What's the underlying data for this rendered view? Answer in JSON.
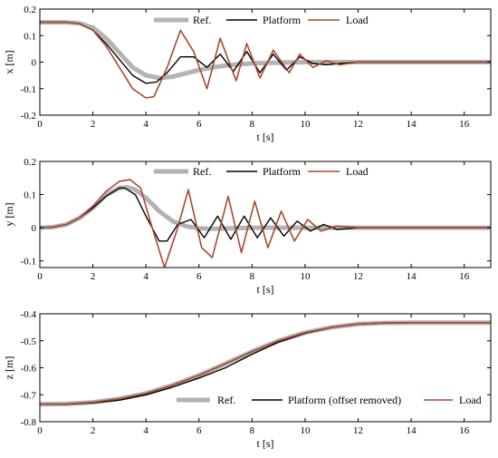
{
  "chart_data": [
    {
      "type": "line",
      "xlabel": "t [s]",
      "ylabel": "x [m]",
      "xlim": [
        0,
        17
      ],
      "ylim": [
        -0.2,
        0.2
      ],
      "xticks": [
        "0",
        "2",
        "4",
        "6",
        "8",
        "10",
        "12",
        "14",
        "16"
      ],
      "yticks": [
        "-0.2",
        "-0.1",
        "0",
        "0.1",
        "0.2"
      ],
      "grid": false,
      "legend_position": "top",
      "series": [
        {
          "name": "Ref.",
          "color": "#b3b3b3",
          "x": [
            0,
            1,
            1.5,
            2,
            2.5,
            3,
            3.5,
            4,
            4.5,
            5,
            5.5,
            6,
            6.5,
            7,
            7.5,
            8,
            8.5,
            9,
            9.5,
            10,
            10.5,
            11,
            11.5,
            12,
            17
          ],
          "y": [
            0.15,
            0.15,
            0.146,
            0.13,
            0.09,
            0.035,
            -0.02,
            -0.05,
            -0.06,
            -0.055,
            -0.042,
            -0.03,
            -0.02,
            -0.013,
            -0.008,
            -0.005,
            -0.003,
            -0.002,
            -0.001,
            -0.0005,
            0,
            0,
            0,
            0,
            0
          ]
        },
        {
          "name": "Platform",
          "color": "#000000",
          "x": [
            0,
            1,
            1.5,
            2,
            2.5,
            3,
            3.5,
            4,
            4.4,
            4.8,
            5.3,
            5.8,
            6.3,
            6.8,
            7.3,
            7.8,
            8.3,
            8.8,
            9.3,
            9.8,
            10.3,
            10.8,
            11.3,
            12,
            17
          ],
          "y": [
            0.15,
            0.15,
            0.145,
            0.12,
            0.07,
            0.01,
            -0.05,
            -0.08,
            -0.075,
            -0.04,
            0.02,
            0.02,
            -0.02,
            0.03,
            -0.035,
            0.04,
            -0.04,
            0.03,
            -0.03,
            0.02,
            -0.005,
            -0.01,
            -0.005,
            0,
            0
          ]
        },
        {
          "name": "Load",
          "color": "#a84a2c",
          "x": [
            0,
            1,
            1.5,
            2,
            2.5,
            3,
            3.5,
            4,
            4.3,
            4.8,
            5.3,
            5.8,
            6.3,
            6.8,
            7.4,
            7.8,
            8.3,
            8.8,
            9.4,
            9.8,
            10.3,
            10.8,
            11.3,
            12,
            17
          ],
          "y": [
            0.15,
            0.15,
            0.145,
            0.12,
            0.06,
            -0.02,
            -0.1,
            -0.135,
            -0.13,
            -0.02,
            0.12,
            0.04,
            -0.1,
            0.09,
            -0.07,
            0.07,
            -0.06,
            0.045,
            -0.04,
            0.03,
            -0.02,
            0.005,
            -0.01,
            0,
            0
          ]
        }
      ]
    },
    {
      "type": "line",
      "xlabel": "t [s]",
      "ylabel": "y [m]",
      "xlim": [
        0,
        17
      ],
      "ylim": [
        -0.12,
        0.2
      ],
      "xticks": [
        "0",
        "2",
        "4",
        "6",
        "8",
        "10",
        "12",
        "14",
        "16"
      ],
      "yticks": [
        "-0.1",
        "0",
        "0.1",
        "0.2"
      ],
      "grid": false,
      "legend_position": "top",
      "series": [
        {
          "name": "Ref.",
          "color": "#b3b3b3",
          "x": [
            0,
            0.5,
            1,
            1.5,
            2,
            2.5,
            3,
            3.3,
            3.6,
            4,
            4.5,
            5,
            5.5,
            6,
            6.5,
            7,
            7.5,
            8,
            9,
            10,
            11,
            12,
            17
          ],
          "y": [
            0,
            0.002,
            0.01,
            0.03,
            0.06,
            0.1,
            0.12,
            0.122,
            0.115,
            0.09,
            0.05,
            0.02,
            0.005,
            -0.002,
            -0.003,
            -0.002,
            -0.001,
            0,
            0,
            0,
            0,
            0,
            0
          ]
        },
        {
          "name": "Platform",
          "color": "#000000",
          "x": [
            0,
            0.5,
            1,
            1.5,
            2,
            2.5,
            3,
            3.2,
            3.6,
            4,
            4.5,
            4.8,
            5.2,
            5.7,
            6.2,
            6.7,
            7.2,
            7.7,
            8.2,
            8.7,
            9.2,
            9.7,
            10.2,
            10.7,
            11.2,
            12,
            17
          ],
          "y": [
            0,
            0.002,
            0.01,
            0.03,
            0.06,
            0.095,
            0.12,
            0.12,
            0.1,
            0.035,
            -0.04,
            -0.04,
            0.01,
            0.025,
            -0.03,
            0.035,
            -0.035,
            0.035,
            -0.03,
            0.03,
            -0.025,
            0.02,
            -0.01,
            0.01,
            -0.005,
            0,
            0
          ]
        },
        {
          "name": "Load",
          "color": "#a84a2c",
          "x": [
            0,
            0.5,
            1,
            1.5,
            2,
            2.5,
            3,
            3.4,
            3.8,
            4.2,
            4.7,
            5.2,
            5.6,
            6.1,
            6.5,
            7.1,
            7.6,
            8.1,
            8.6,
            9.1,
            9.6,
            10.1,
            10.6,
            11.2,
            12,
            17
          ],
          "y": [
            0,
            0.002,
            0.01,
            0.03,
            0.065,
            0.11,
            0.14,
            0.145,
            0.12,
            0.01,
            -0.12,
            0.0,
            0.115,
            -0.06,
            -0.09,
            0.095,
            -0.075,
            0.08,
            -0.06,
            0.05,
            -0.04,
            0.025,
            -0.01,
            0.005,
            0,
            0
          ]
        }
      ]
    },
    {
      "type": "line",
      "xlabel": "t [s]",
      "ylabel": "z [m]",
      "xlim": [
        0,
        17
      ],
      "ylim": [
        -0.8,
        -0.4
      ],
      "xticks": [
        "0",
        "2",
        "4",
        "6",
        "8",
        "10",
        "12",
        "14",
        "16"
      ],
      "yticks": [
        "-0.8",
        "-0.7",
        "-0.6",
        "-0.5",
        "-0.4"
      ],
      "grid": false,
      "legend_position": "bottom",
      "series": [
        {
          "name": "Ref.",
          "color": "#b3b3b3",
          "x": [
            0,
            1,
            2,
            3,
            4,
            5,
            6,
            7,
            8,
            9,
            10,
            11,
            12,
            13,
            14,
            15,
            16,
            17
          ],
          "y": [
            -0.735,
            -0.734,
            -0.728,
            -0.715,
            -0.695,
            -0.665,
            -0.628,
            -0.585,
            -0.54,
            -0.5,
            -0.47,
            -0.45,
            -0.438,
            -0.434,
            -0.433,
            -0.433,
            -0.433,
            -0.433
          ]
        },
        {
          "name": "Platform (offset removed)",
          "color": "#000000",
          "x": [
            0,
            1,
            2,
            3,
            4,
            5,
            6,
            7,
            8,
            9,
            10,
            11,
            12,
            13,
            14,
            15,
            16,
            17
          ],
          "y": [
            -0.735,
            -0.735,
            -0.73,
            -0.72,
            -0.7,
            -0.672,
            -0.638,
            -0.6,
            -0.55,
            -0.505,
            -0.472,
            -0.45,
            -0.438,
            -0.434,
            -0.433,
            -0.433,
            -0.433,
            -0.433
          ]
        },
        {
          "name": "Load",
          "color": "#a84a2c",
          "x": [
            0,
            1,
            2,
            3,
            4,
            5,
            6,
            7,
            8,
            9,
            10,
            11,
            12,
            13,
            14,
            15,
            16,
            17
          ],
          "y": [
            -0.735,
            -0.734,
            -0.728,
            -0.715,
            -0.695,
            -0.665,
            -0.628,
            -0.585,
            -0.54,
            -0.5,
            -0.47,
            -0.45,
            -0.438,
            -0.434,
            -0.433,
            -0.433,
            -0.433,
            -0.433
          ]
        }
      ]
    }
  ]
}
